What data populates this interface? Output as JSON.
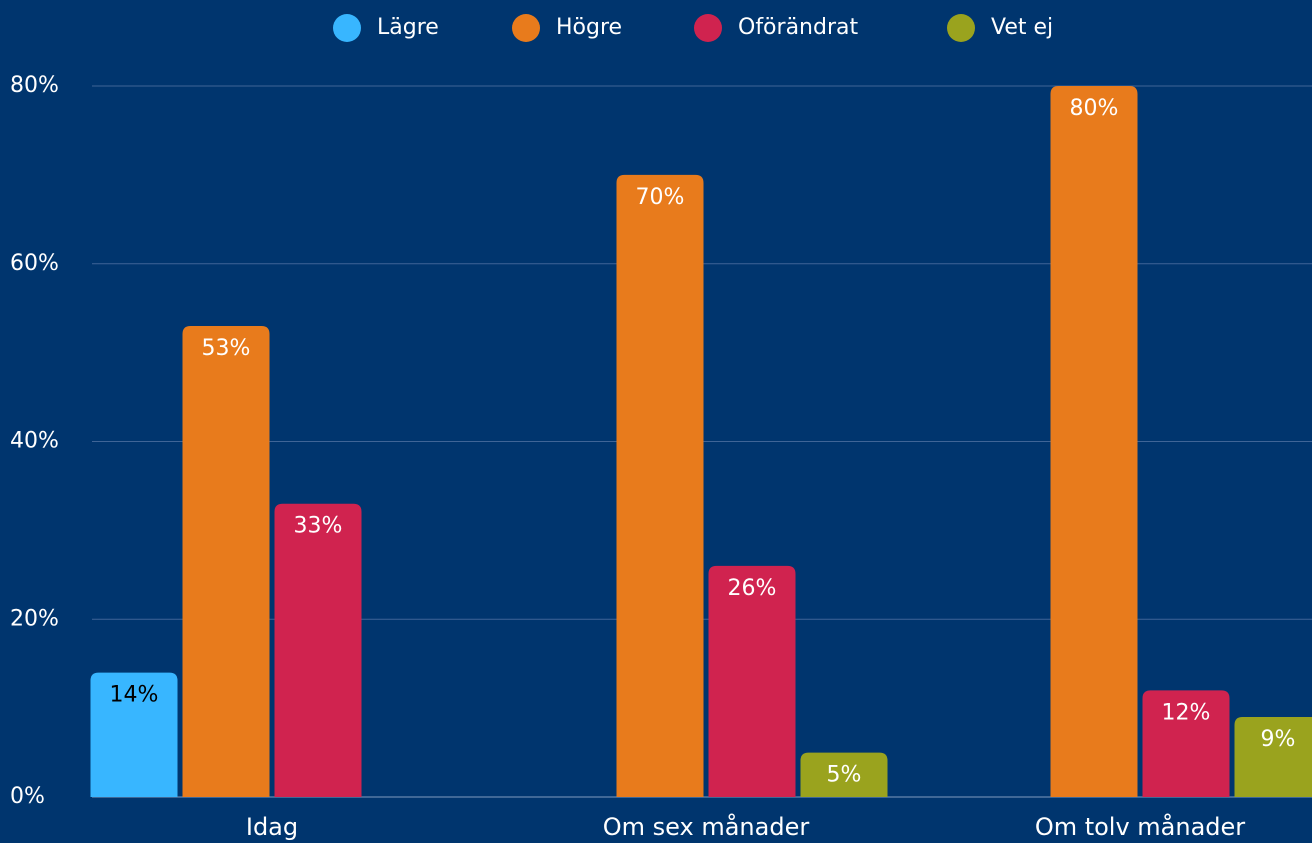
{
  "chart_data": {
    "type": "bar",
    "categories": [
      "Idag",
      "Om sex månader",
      "Om tolv månader"
    ],
    "series": [
      {
        "name": "Lägre",
        "color": "#38b6ff",
        "values": [
          14,
          null,
          null
        ],
        "value_labels": [
          "14%",
          null,
          null
        ]
      },
      {
        "name": "Högre",
        "color": "#e87b1c",
        "values": [
          53,
          70,
          80
        ],
        "value_labels": [
          "53%",
          "70%",
          "80%"
        ]
      },
      {
        "name": "Oförändrat",
        "color": "#d0234f",
        "values": [
          33,
          26,
          12
        ],
        "value_labels": [
          "33%",
          "26%",
          "12%"
        ]
      },
      {
        "name": "Vet ej",
        "color": "#9aa31e",
        "values": [
          null,
          5,
          9
        ],
        "value_labels": [
          null,
          "5%",
          "9%"
        ]
      }
    ],
    "ylim": [
      0,
      80
    ],
    "yticks": [
      {
        "value": 0,
        "label": "0%"
      },
      {
        "value": 20,
        "label": "20%"
      },
      {
        "value": 40,
        "label": "40%"
      },
      {
        "value": 60,
        "label": "60%"
      },
      {
        "value": 80,
        "label": "80%"
      }
    ],
    "grid": true,
    "legend": "top"
  }
}
